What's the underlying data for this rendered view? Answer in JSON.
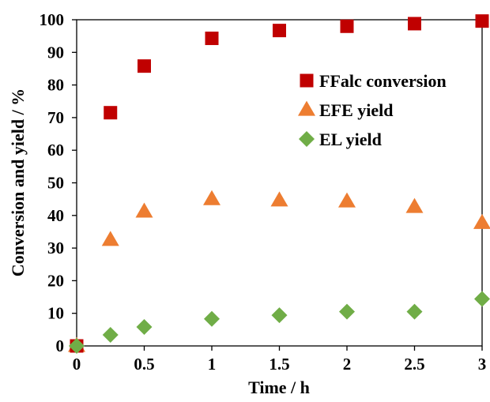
{
  "chart_data": {
    "type": "scatter",
    "title": "",
    "xlabel": "Time / h",
    "ylabel": "Conversion and yield / %",
    "xlim": [
      0,
      3
    ],
    "ylim": [
      0,
      100
    ],
    "xticks": [
      0,
      0.5,
      1,
      1.5,
      2,
      2.5,
      3
    ],
    "xtick_labels": [
      "0",
      "0.5",
      "1",
      "1.5",
      "2",
      "2.5",
      "3"
    ],
    "yticks": [
      0,
      10,
      20,
      30,
      40,
      50,
      60,
      70,
      80,
      90,
      100
    ],
    "ytick_labels": [
      "0",
      "10",
      "20",
      "30",
      "40",
      "50",
      "60",
      "70",
      "80",
      "90",
      "100"
    ],
    "grid": false,
    "legend_position": "right",
    "series": [
      {
        "name": "FFalc conversion",
        "marker": "square",
        "color": "#c00000",
        "points": [
          [
            0,
            0
          ],
          [
            0.25,
            71.5
          ],
          [
            0.5,
            85.8
          ],
          [
            1,
            94.3
          ],
          [
            1.5,
            96.7
          ],
          [
            2,
            98
          ],
          [
            2.5,
            98.8
          ],
          [
            3,
            99.6
          ]
        ]
      },
      {
        "name": "EFE yield",
        "marker": "triangle",
        "color": "#ed7d31",
        "points": [
          [
            0,
            0
          ],
          [
            0.25,
            32.5
          ],
          [
            0.5,
            41.2
          ],
          [
            1,
            45
          ],
          [
            1.5,
            44.6
          ],
          [
            2,
            44.3
          ],
          [
            2.5,
            42.6
          ],
          [
            3,
            37.7
          ]
        ]
      },
      {
        "name": "EL yield",
        "marker": "diamond",
        "color": "#70ad47",
        "points": [
          [
            0,
            0
          ],
          [
            0.25,
            3.4
          ],
          [
            0.5,
            5.8
          ],
          [
            1,
            8.3
          ],
          [
            1.5,
            9.4
          ],
          [
            2,
            10.5
          ],
          [
            2.5,
            10.5
          ],
          [
            3,
            14.4
          ]
        ]
      }
    ]
  }
}
